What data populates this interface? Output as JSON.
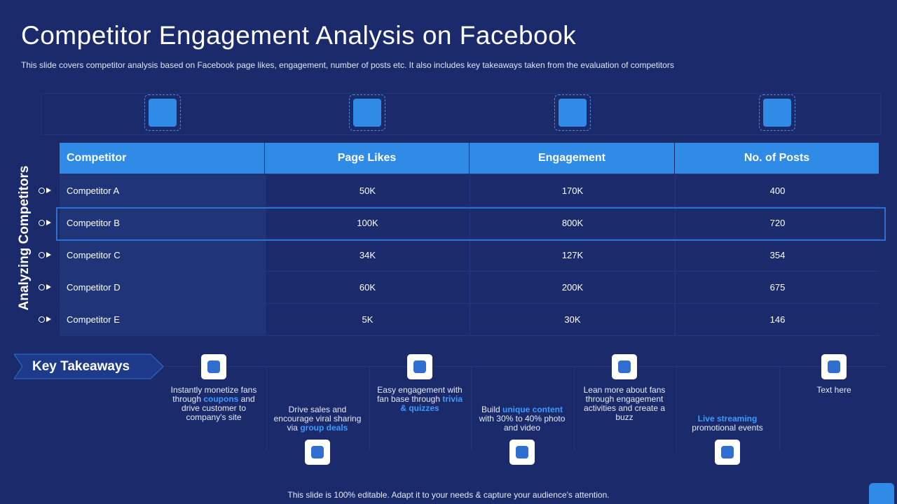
{
  "title": "Competitor Engagement Analysis on Facebook",
  "subtitle": "This slide covers competitor analysis based on Facebook page likes, engagement, number of posts etc. It also includes key takeaways taken from the evaluation of competitors",
  "side_label": "Analyzing Competitors",
  "table": {
    "headers": [
      "Competitor",
      "Page Likes",
      "Engagement",
      "No. of Posts"
    ],
    "rows": [
      [
        "Competitor A",
        "50K",
        "170K",
        "400"
      ],
      [
        "Competitor B",
        "100K",
        "800K",
        "720"
      ],
      [
        "Competitor C",
        "34K",
        "127K",
        "354"
      ],
      [
        "Competitor D",
        "60K",
        "200K",
        "675"
      ],
      [
        "Competitor E",
        "5K",
        "30K",
        "146"
      ]
    ]
  },
  "takeaways": {
    "title": "Key Takeaways",
    "items": [
      {
        "parts": [
          {
            "text": "Instantly monetize fans through "
          },
          {
            "text": "coupons",
            "em": true
          },
          {
            "text": " and drive customer to company's site"
          }
        ]
      },
      {
        "parts": [
          {
            "text": "Drive sales and encourage viral sharing via "
          },
          {
            "text": "group deals",
            "em": true
          }
        ]
      },
      {
        "parts": [
          {
            "text": "Easy engagement with fan base through "
          },
          {
            "text": "trivia & quizzes",
            "em": true
          }
        ]
      },
      {
        "parts": [
          {
            "text": "Build "
          },
          {
            "text": "unique content",
            "em": true
          },
          {
            "text": " with 30% to 40% photo and video"
          }
        ]
      },
      {
        "parts": [
          {
            "text": "Lean more about fans through engagement activities and create a buzz"
          }
        ]
      },
      {
        "parts": [
          {
            "text": "Live streaming",
            "em": true
          },
          {
            "text": " promotional events"
          }
        ]
      },
      {
        "parts": [
          {
            "text": "Text here"
          }
        ]
      }
    ]
  },
  "footer": "This slide is 100% editable. Adapt it to your needs & capture your audience's attention."
}
